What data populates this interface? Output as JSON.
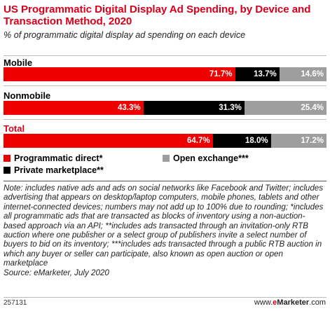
{
  "chart_data": {
    "type": "bar",
    "orientation": "horizontal-stacked-100",
    "title": "US Programmatic Digital Display Ad Spending, by Device and Transaction Method, 2020",
    "subtitle": "% of programmatic digital display ad spending on each device",
    "categories": [
      "Mobile",
      "Nonmobile",
      "Total"
    ],
    "series": [
      {
        "name": "Programmatic direct*",
        "color": "#ee0000",
        "values": [
          71.7,
          43.3,
          64.7
        ]
      },
      {
        "name": "Private marketplace**",
        "color": "#000000",
        "values": [
          13.7,
          31.3,
          18.0
        ]
      },
      {
        "name": "Open exchange***",
        "color": "#9e9e9e",
        "values": [
          14.6,
          25.4,
          17.2
        ]
      }
    ],
    "value_labels": [
      [
        "71.7%",
        "13.7%",
        "14.6%"
      ],
      [
        "43.3%",
        "31.3%",
        "25.4%"
      ],
      [
        "64.7%",
        "18.0%",
        "17.2%"
      ]
    ],
    "xlim": [
      0,
      100
    ],
    "legend_position": "bottom"
  },
  "note": "Note: includes native ads and ads on social networks like Facebook and Twitter; includes advertising that appears on desktop/laptop computers, mobile phones, tablets and other internet-connected devices; numbers may not add up to 100% due to rounding; *includes all programmatic ads that are transacted as blocks of inventory using a non-auction-based approach via an API; **includes ads transacted through an invitation-only RTB auction where one publisher or a select group of publishers invite a select number of buyers to bid on its inventory; ***includes ads transacted through a public RTB auction in which any buyer or seller can participate, also known as open auction or open marketplace",
  "source": "Source: eMarketer, July 2020",
  "footer": {
    "chart_id": "257131",
    "brand_prefix": "www.",
    "brand_e": "e",
    "brand_name": "Marketer",
    "brand_suffix": ".com"
  }
}
